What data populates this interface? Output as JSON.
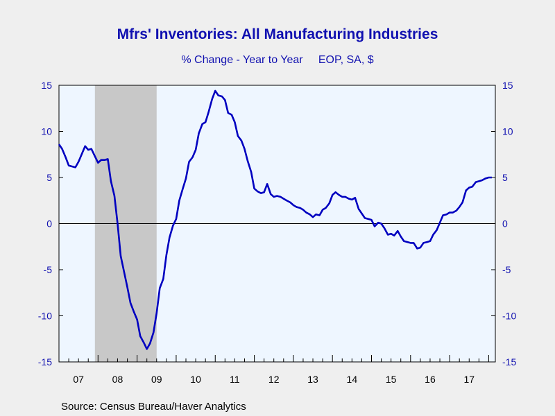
{
  "chart_data": {
    "type": "line",
    "title": "Mfrs' Inventories: All Manufacturing Industries",
    "subtitle": "% Change - Year to Year     EOP, SA, $",
    "source": "Source:  Census Bureau/Haver Analytics",
    "ylim": [
      -15,
      15
    ],
    "yticks": [
      15,
      10,
      5,
      0,
      -5,
      -10,
      -15
    ],
    "xlim": [
      2007.0,
      2018.17
    ],
    "xtick_labels": [
      "07",
      "08",
      "09",
      "10",
      "11",
      "12",
      "13",
      "14",
      "15",
      "16",
      "17"
    ],
    "recession": {
      "start": 2007.92,
      "end": 2009.5
    },
    "grid": false,
    "zero_line": true,
    "series": [
      {
        "color": "#0000c0",
        "x": [
          2007.0,
          2007.08,
          2007.17,
          2007.25,
          2007.33,
          2007.42,
          2007.5,
          2007.58,
          2007.67,
          2007.75,
          2007.83,
          2007.92,
          2008.0,
          2008.08,
          2008.17,
          2008.25,
          2008.33,
          2008.42,
          2008.5,
          2008.58,
          2008.67,
          2008.75,
          2008.83,
          2008.92,
          2009.0,
          2009.08,
          2009.17,
          2009.25,
          2009.33,
          2009.42,
          2009.5,
          2009.58,
          2009.67,
          2009.75,
          2009.83,
          2009.92,
          2010.0,
          2010.08,
          2010.17,
          2010.25,
          2010.33,
          2010.42,
          2010.5,
          2010.58,
          2010.67,
          2010.75,
          2010.83,
          2010.92,
          2011.0,
          2011.08,
          2011.17,
          2011.25,
          2011.33,
          2011.42,
          2011.5,
          2011.58,
          2011.67,
          2011.75,
          2011.83,
          2011.92,
          2012.0,
          2012.08,
          2012.17,
          2012.25,
          2012.33,
          2012.42,
          2012.5,
          2012.58,
          2012.67,
          2012.75,
          2012.83,
          2012.92,
          2013.0,
          2013.08,
          2013.17,
          2013.25,
          2013.33,
          2013.42,
          2013.5,
          2013.58,
          2013.67,
          2013.75,
          2013.83,
          2013.92,
          2014.0,
          2014.08,
          2014.17,
          2014.25,
          2014.33,
          2014.42,
          2014.5,
          2014.58,
          2014.67,
          2014.75,
          2014.83,
          2014.92,
          2015.0,
          2015.08,
          2015.17,
          2015.25,
          2015.33,
          2015.42,
          2015.5,
          2015.58,
          2015.67,
          2015.75,
          2015.83,
          2015.92,
          2016.0,
          2016.08,
          2016.17,
          2016.25,
          2016.33,
          2016.42,
          2016.5,
          2016.58,
          2016.67,
          2016.75,
          2016.83,
          2016.92,
          2017.0,
          2017.08,
          2017.17,
          2017.25,
          2017.33,
          2017.42,
          2017.5,
          2017.58,
          2017.67,
          2017.75,
          2017.83,
          2017.92,
          2018.0,
          2018.08
        ],
        "y": [
          8.6,
          8.1,
          7.2,
          6.3,
          6.2,
          6.1,
          6.7,
          7.5,
          8.4,
          8.0,
          8.1,
          7.3,
          6.6,
          6.9,
          6.9,
          7.0,
          4.6,
          3.0,
          0.0,
          -3.5,
          -5.3,
          -6.9,
          -8.6,
          -9.6,
          -10.4,
          -12.2,
          -12.9,
          -13.6,
          -13.0,
          -11.8,
          -9.7,
          -7.0,
          -6.0,
          -3.4,
          -1.5,
          -0.2,
          0.5,
          2.5,
          3.8,
          4.9,
          6.7,
          7.2,
          8.0,
          9.8,
          10.8,
          11.0,
          12.1,
          13.5,
          14.4,
          13.9,
          13.8,
          13.4,
          12.0,
          11.8,
          11.0,
          9.5,
          9.0,
          8.1,
          6.8,
          5.6,
          3.8,
          3.5,
          3.3,
          3.4,
          4.3,
          3.2,
          2.9,
          3.0,
          2.9,
          2.7,
          2.5,
          2.3,
          2.0,
          1.8,
          1.7,
          1.5,
          1.2,
          1.0,
          0.7,
          1.0,
          0.9,
          1.5,
          1.7,
          2.2,
          3.1,
          3.4,
          3.1,
          2.9,
          2.9,
          2.7,
          2.6,
          2.8,
          1.6,
          1.1,
          0.6,
          0.5,
          0.4,
          -0.3,
          0.1,
          0.0,
          -0.5,
          -1.2,
          -1.1,
          -1.3,
          -0.8,
          -1.4,
          -1.9,
          -2.0,
          -2.1,
          -2.1,
          -2.7,
          -2.6,
          -2.1,
          -2.0,
          -1.9,
          -1.2,
          -0.7,
          0.1,
          0.9,
          1.0,
          1.2,
          1.2,
          1.4,
          1.8,
          2.3,
          3.6,
          3.9,
          4.0,
          4.5,
          4.6,
          4.7,
          4.9,
          5.0,
          5.0
        ]
      }
    ]
  }
}
